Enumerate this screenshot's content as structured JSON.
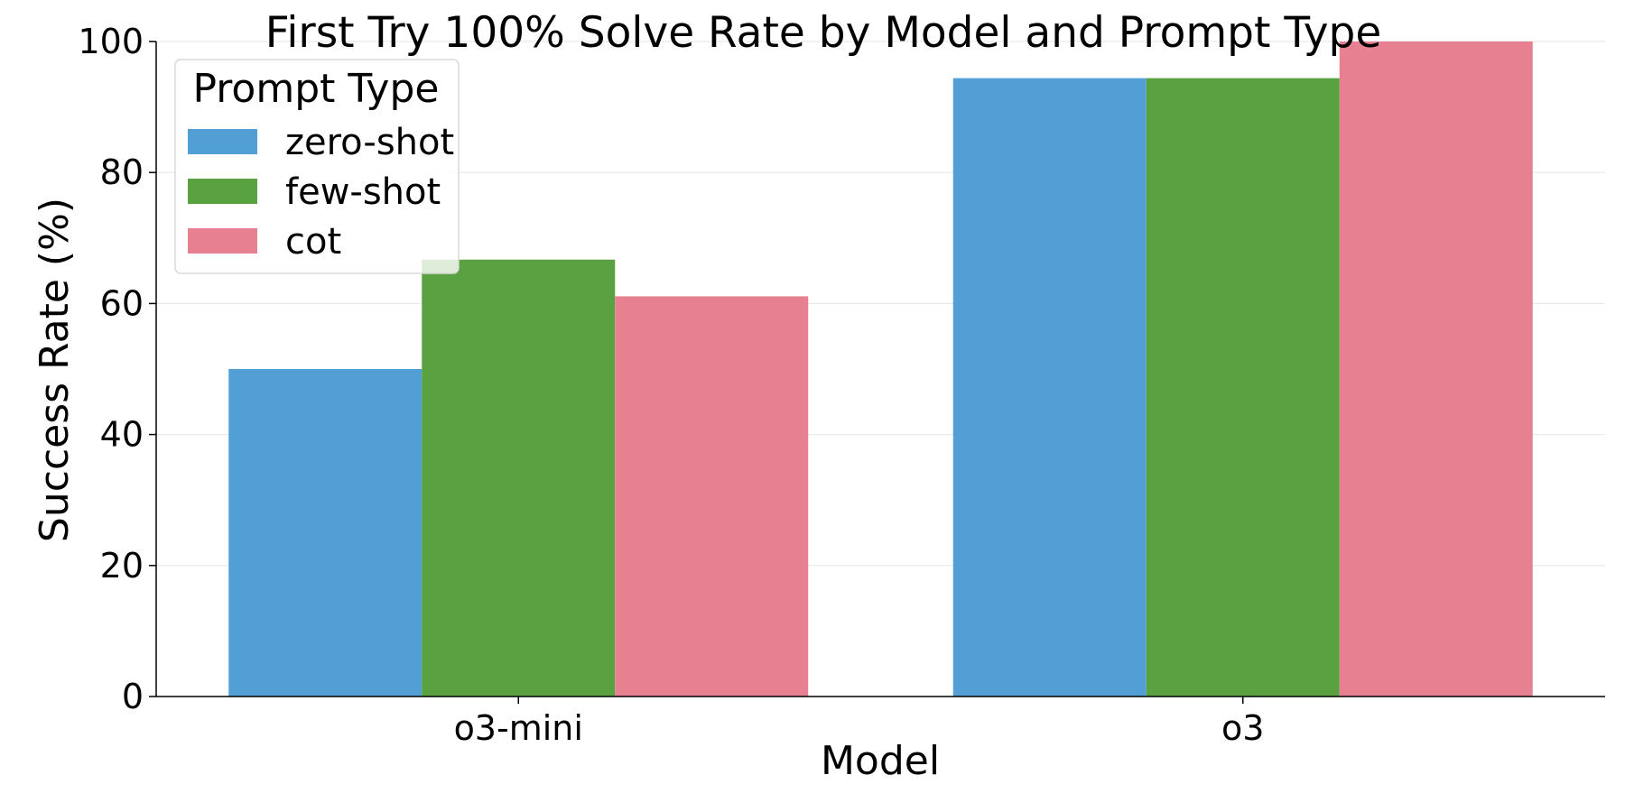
{
  "chart_data": {
    "type": "bar",
    "title": "First Try 100% Solve Rate by Model and Prompt Type",
    "xlabel": "Model",
    "ylabel": "Success Rate (%)",
    "categories": [
      "o3-mini",
      "o3"
    ],
    "series": [
      {
        "name": "zero-shot",
        "values": [
          50.0,
          94.4
        ],
        "color": "#529fd6"
      },
      {
        "name": "few-shot",
        "values": [
          66.7,
          94.4
        ],
        "color": "#59a141"
      },
      {
        "name": "cot",
        "values": [
          61.1,
          100.0
        ],
        "color": "#e78191"
      }
    ],
    "ylim": [
      0,
      100
    ],
    "yticks": [
      "0",
      "20",
      "40",
      "60",
      "80",
      "100"
    ],
    "grid": "horizontal",
    "legend": {
      "title": "Prompt Type",
      "placement": "top-left"
    }
  }
}
